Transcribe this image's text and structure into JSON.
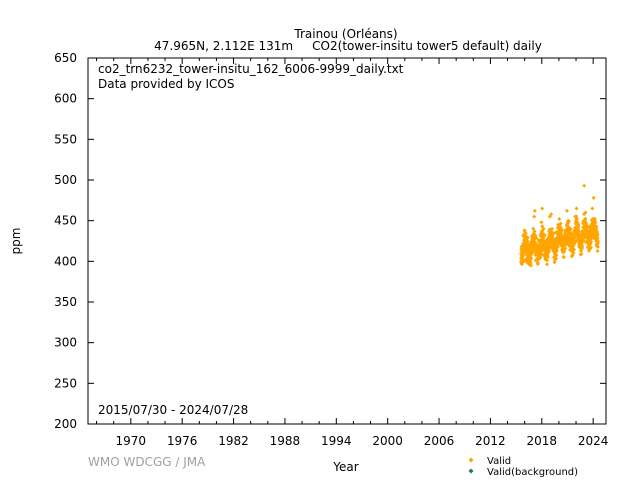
{
  "chart_data": {
    "type": "scatter",
    "title": "Trainou (Orléans)",
    "subtitle": "47.965N, 2.112E 131m     CO2(tower-insitu tower5 default) daily",
    "xlabel": "Year",
    "ylabel": "ppm",
    "xlim": [
      1965,
      2025.5
    ],
    "ylim": [
      200,
      650
    ],
    "xticks": [
      1970,
      1976,
      1982,
      1988,
      1994,
      2000,
      2006,
      2012,
      2018,
      2024
    ],
    "yticks": [
      200,
      250,
      300,
      350,
      400,
      450,
      500,
      550,
      600,
      650
    ],
    "grid": false,
    "annotations": {
      "filename": "co2_trn6232_tower-insitu_162_6006-9999_daily.txt",
      "provider": "Data provided by ICOS",
      "date_range": "2015/07/30 - 2024/07/28"
    },
    "legend": {
      "placement": "bottom-right",
      "entries": [
        {
          "label": "Valid",
          "color": "#ffa500"
        },
        {
          "label": "Valid(background)",
          "color": "#1f7a6a"
        }
      ]
    },
    "series": [
      {
        "name": "Valid",
        "color": "#ffa500",
        "summary": {
          "x_start": 2015.58,
          "x_end": 2024.57,
          "trend_start": 412,
          "trend_end": 437,
          "seasonal_amplitude": 8
        },
        "points": [
          [
            2015.6,
            398
          ],
          [
            2015.7,
            405
          ],
          [
            2015.8,
            420
          ],
          [
            2015.9,
            433
          ],
          [
            2016.0,
            438
          ],
          [
            2016.1,
            425
          ],
          [
            2016.3,
            415
          ],
          [
            2016.5,
            402
          ],
          [
            2016.7,
            408
          ],
          [
            2016.9,
            430
          ],
          [
            2017.0,
            440
          ],
          [
            2017.1,
            455
          ],
          [
            2017.2,
            462
          ],
          [
            2017.4,
            420
          ],
          [
            2017.6,
            405
          ],
          [
            2017.8,
            418
          ],
          [
            2017.95,
            448
          ],
          [
            2018.05,
            465
          ],
          [
            2018.2,
            440
          ],
          [
            2018.4,
            418
          ],
          [
            2018.6,
            410
          ],
          [
            2018.8,
            425
          ],
          [
            2018.95,
            455
          ],
          [
            2019.1,
            458
          ],
          [
            2019.3,
            428
          ],
          [
            2019.5,
            410
          ],
          [
            2019.7,
            415
          ],
          [
            2019.9,
            445
          ],
          [
            2020.05,
            452
          ],
          [
            2020.2,
            440
          ],
          [
            2020.4,
            420
          ],
          [
            2020.6,
            412
          ],
          [
            2020.8,
            430
          ],
          [
            2020.95,
            462
          ],
          [
            2021.1,
            450
          ],
          [
            2021.3,
            430
          ],
          [
            2021.5,
            415
          ],
          [
            2021.7,
            420
          ],
          [
            2021.9,
            455
          ],
          [
            2022.05,
            465
          ],
          [
            2022.2,
            442
          ],
          [
            2022.4,
            422
          ],
          [
            2022.6,
            416
          ],
          [
            2022.8,
            435
          ],
          [
            2022.95,
            493
          ],
          [
            2023.1,
            460
          ],
          [
            2023.3,
            435
          ],
          [
            2023.5,
            418
          ],
          [
            2023.7,
            422
          ],
          [
            2023.9,
            465
          ],
          [
            2024.05,
            478
          ],
          [
            2024.2,
            452
          ],
          [
            2024.35,
            432
          ],
          [
            2024.5,
            425
          ]
        ]
      },
      {
        "name": "Valid(background)",
        "color": "#1f7a6a",
        "points": []
      }
    ]
  },
  "footer": {
    "credit": "WMO WDCGG / JMA"
  }
}
